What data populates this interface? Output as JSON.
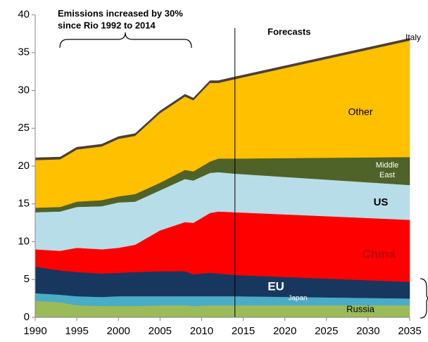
{
  "chart_data": {
    "type": "stacked_area",
    "x": [
      1990,
      1993,
      1995,
      1998,
      2000,
      2002,
      2005,
      2008,
      2009,
      2011,
      2012,
      2014,
      2035
    ],
    "series": [
      {
        "name": "Russia",
        "color": "#9bbb59",
        "values": [
          2.2,
          2.0,
          1.6,
          1.5,
          1.5,
          1.5,
          1.6,
          1.6,
          1.5,
          1.6,
          1.6,
          1.6,
          1.6
        ]
      },
      {
        "name": "Japan",
        "color": "#4bacc6",
        "values": [
          1.0,
          1.0,
          1.2,
          1.2,
          1.3,
          1.3,
          1.2,
          1.2,
          1.3,
          1.2,
          1.2,
          1.2,
          0.9
        ]
      },
      {
        "name": "EU",
        "color": "#17375e",
        "values": [
          3.5,
          3.2,
          3.2,
          3.1,
          3.1,
          3.2,
          3.3,
          3.3,
          2.9,
          3.1,
          3.0,
          2.8,
          2.2
        ]
      },
      {
        "name": "China",
        "color": "#ff0000",
        "values": [
          2.3,
          2.6,
          3.2,
          3.2,
          3.3,
          3.6,
          5.4,
          6.5,
          6.8,
          7.9,
          8.2,
          8.3,
          8.2
        ]
      },
      {
        "name": "US",
        "color": "#b7dde8",
        "values": [
          4.9,
          5.2,
          5.4,
          5.7,
          6.0,
          5.7,
          5.3,
          5.7,
          5.6,
          5.3,
          5.2,
          5.1,
          4.6
        ]
      },
      {
        "name": "Middle East",
        "color": "#4f6228",
        "values": [
          0.6,
          0.6,
          0.7,
          0.8,
          0.8,
          1.0,
          1.0,
          1.2,
          1.2,
          1.5,
          1.8,
          2.0,
          3.7
        ]
      },
      {
        "name": "Other",
        "color": "#ffc000",
        "values": [
          6.3,
          6.3,
          6.9,
          7.1,
          7.6,
          7.7,
          9.2,
          9.7,
          9.4,
          10.4,
          10.0,
          10.5,
          15.4
        ]
      },
      {
        "name": "Italy",
        "color": "#4a4037",
        "values": [
          0.3,
          0.3,
          0.3,
          0.3,
          0.3,
          0.3,
          0.3,
          0.3,
          0.3,
          0.3,
          0.3,
          0.3,
          0.3
        ]
      }
    ],
    "xlim": [
      1990,
      2035
    ],
    "ylim": [
      0,
      40
    ],
    "xticks": [
      1990,
      1995,
      2000,
      2005,
      2010,
      2015,
      2020,
      2025,
      2030,
      2035
    ],
    "yticks": [
      0,
      5,
      10,
      15,
      20,
      25,
      30,
      35,
      40
    ],
    "forecast_start": 2014,
    "annotations": [
      "Emissions increased by 30%",
      "since Rio 1992 to 2014",
      "Forecasts"
    ]
  }
}
